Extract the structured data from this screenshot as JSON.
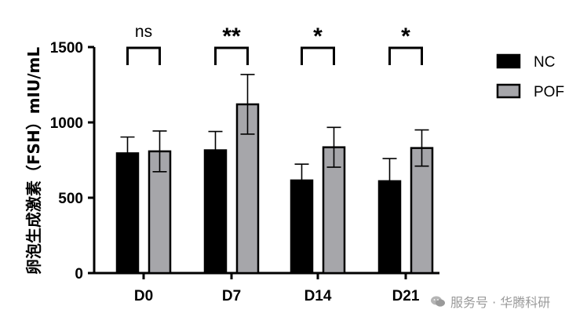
{
  "chart_data": {
    "type": "bar",
    "title": "",
    "xlabel": "",
    "ylabel": "卵泡生成激素（FSH）mIU/mL",
    "ylim": [
      0,
      1500
    ],
    "yticks": [
      "0",
      "500",
      "1000",
      "1500"
    ],
    "categories": [
      "D0",
      "D7",
      "D14",
      "D21"
    ],
    "series": [
      {
        "name": "NC",
        "color": "#000000",
        "values": [
          795,
          815,
          615,
          610
        ],
        "errors": [
          108,
          125,
          108,
          150
        ]
      },
      {
        "name": "POF",
        "color": "#a6a6aa",
        "values": [
          808,
          1120,
          835,
          830
        ],
        "errors": [
          135,
          198,
          132,
          120
        ]
      }
    ],
    "significance": [
      "ns",
      "**",
      "*",
      "*"
    ],
    "legend_placement": "top-right"
  },
  "watermark": {
    "text": "服务号 · 华腾科研",
    "icon": "wechat-icon"
  }
}
